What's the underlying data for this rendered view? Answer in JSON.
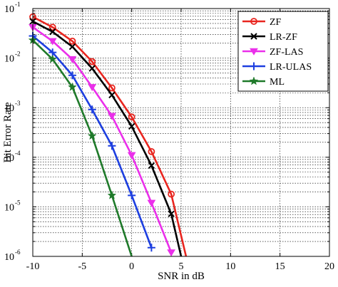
{
  "chart_data": {
    "type": "line",
    "xlabel": "SNR in dB",
    "ylabel": "Bit Error Rate",
    "xlim": [
      -10,
      20
    ],
    "ylim": [
      1e-06,
      0.1
    ],
    "y_scale": "log",
    "x_ticks": [
      -10,
      -5,
      0,
      5,
      10,
      15,
      20
    ],
    "x_tick_labels": [
      "-10",
      "-5",
      "0",
      "5",
      "10",
      "15",
      "20"
    ],
    "y_ticks": [
      {
        "value": 1e-06,
        "base": "10",
        "exp": "-6"
      },
      {
        "value": 1e-05,
        "base": "10",
        "exp": "-5"
      },
      {
        "value": 0.0001,
        "base": "10",
        "exp": "-4"
      },
      {
        "value": 0.001,
        "base": "10",
        "exp": "-3"
      },
      {
        "value": 0.01,
        "base": "10",
        "exp": "-2"
      },
      {
        "value": 0.1,
        "base": "10",
        "exp": "-1"
      }
    ],
    "grid": true,
    "legend_position": "top-right",
    "series": [
      {
        "name": "ZF",
        "color": "#e8251f",
        "marker": "circle",
        "x": [
          -10,
          -8,
          -6,
          -4,
          -2,
          0,
          2,
          4,
          5.5
        ],
        "y": [
          0.068,
          0.042,
          0.022,
          0.0085,
          0.0025,
          0.00065,
          0.00013,
          1.8e-05,
          1e-06
        ]
      },
      {
        "name": "LR-ZF",
        "color": "#000000",
        "marker": "x",
        "x": [
          -10,
          -8,
          -6,
          -4,
          -2,
          0,
          2,
          4,
          5
        ],
        "y": [
          0.055,
          0.034,
          0.017,
          0.0062,
          0.0018,
          0.00042,
          6.8e-05,
          7.2e-06,
          1e-06
        ]
      },
      {
        "name": "ZF-LAS",
        "color": "#ea2fea",
        "marker": "triangle-down",
        "x": [
          -10,
          -8,
          -6,
          -4,
          -2,
          0,
          2,
          4
        ],
        "y": [
          0.042,
          0.022,
          0.0095,
          0.0026,
          0.00068,
          0.00011,
          1.2e-05,
          1.2e-06
        ]
      },
      {
        "name": "LR-ULAS",
        "color": "#1d3fe0",
        "marker": "plus",
        "x": [
          -10,
          -8,
          -6,
          -4,
          -2,
          0,
          2
        ],
        "y": [
          0.028,
          0.013,
          0.0045,
          0.00092,
          0.00017,
          1.7e-05,
          1.5e-06
        ]
      },
      {
        "name": "ML",
        "color": "#1f7a2a",
        "marker": "star",
        "x": [
          -10,
          -8,
          -6,
          -4,
          -2,
          0
        ],
        "y": [
          0.023,
          0.0095,
          0.0026,
          0.00027,
          1.7e-05,
          1e-06
        ]
      }
    ]
  }
}
